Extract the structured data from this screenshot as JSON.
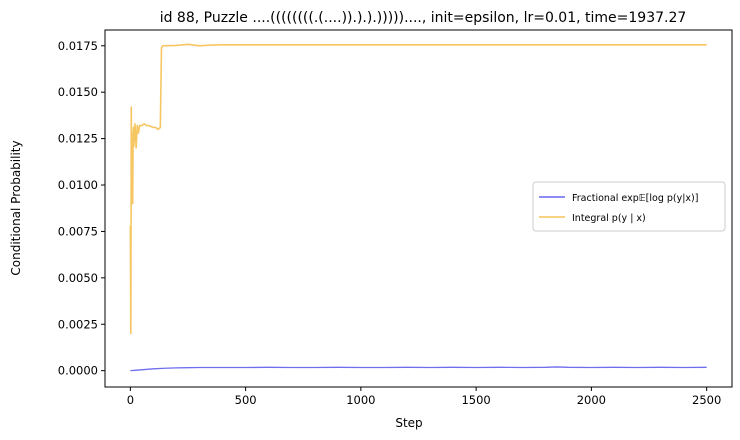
{
  "chart_data": {
    "type": "line",
    "title": "id 88, Puzzle ....((((((((.(....)).).).)))))...., init=epsilon, lr=0.01, time=1937.27",
    "xlabel": "Step",
    "ylabel": "Conditional Probability",
    "xlim": [
      -110,
      2610
    ],
    "ylim": [
      -0.00088,
      0.01835
    ],
    "xticks": [
      0,
      500,
      1000,
      1500,
      2000,
      2500
    ],
    "xtick_labels": [
      "0",
      "500",
      "1000",
      "1500",
      "2000",
      "2500"
    ],
    "yticks": [
      0.0,
      0.0025,
      0.005,
      0.0075,
      0.01,
      0.0125,
      0.015,
      0.0175
    ],
    "ytick_labels": [
      "0.0000",
      "0.0025",
      "0.0050",
      "0.0075",
      "0.0100",
      "0.0125",
      "0.0150",
      "0.0175"
    ],
    "grid": false,
    "legend_position": "center-right",
    "series": [
      {
        "name": "Fractional exp𝔼[log p(y|x)]",
        "color": "#6666ee",
        "x": [
          0,
          10,
          20,
          40,
          60,
          80,
          100,
          150,
          200,
          250,
          300,
          400,
          500,
          600,
          700,
          800,
          900,
          1000,
          1100,
          1200,
          1300,
          1400,
          1500,
          1600,
          1700,
          1800,
          1850,
          1900,
          2000,
          2100,
          2200,
          2300,
          2400,
          2500
        ],
        "values": [
          0.0,
          1e-05,
          2e-05,
          4e-05,
          6e-05,
          8e-05,
          0.0001,
          0.00013,
          0.00015,
          0.00016,
          0.00017,
          0.00017,
          0.00017,
          0.00018,
          0.00017,
          0.00017,
          0.00018,
          0.00017,
          0.00017,
          0.00018,
          0.00017,
          0.00018,
          0.00017,
          0.00018,
          0.00017,
          0.00018,
          0.0002,
          0.00018,
          0.00017,
          0.00018,
          0.00017,
          0.00018,
          0.00017,
          0.00018
        ]
      },
      {
        "name": "Integral p(y | x)",
        "color": "#f5c35a",
        "x": [
          0,
          2,
          3,
          4,
          6,
          8,
          10,
          12,
          14,
          15,
          20,
          25,
          30,
          35,
          40,
          50,
          60,
          70,
          80,
          100,
          110,
          120,
          130,
          135,
          140,
          200,
          250,
          300,
          350,
          400,
          500,
          1000,
          1500,
          2000,
          2500
        ],
        "values": [
          0.0078,
          0.002,
          0.0074,
          0.0142,
          0.0095,
          0.0121,
          0.009,
          0.0128,
          0.0131,
          0.0121,
          0.0133,
          0.012,
          0.0132,
          0.0128,
          0.0132,
          0.0132,
          0.0133,
          0.0132,
          0.0132,
          0.0131,
          0.0131,
          0.013,
          0.0131,
          0.0174,
          0.0175,
          0.01752,
          0.01758,
          0.0175,
          0.01754,
          0.01755,
          0.01755,
          0.01755,
          0.01755,
          0.01755,
          0.01755
        ]
      }
    ]
  },
  "legend": {
    "fractional_label": "Fractional exp𝔼[log p(y|x)]",
    "integral_label": "Integral p(y | x)"
  },
  "colors": {
    "fractional": "#6666ee",
    "integral": "#f5c35a",
    "axes": "#000000"
  }
}
